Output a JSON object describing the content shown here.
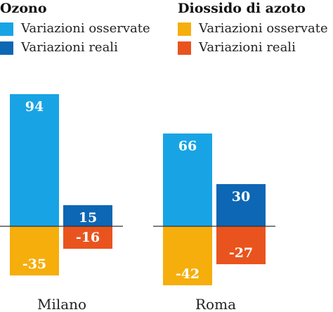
{
  "legend": {
    "groups": [
      {
        "title": "Ozono",
        "items": [
          {
            "label": "Variazioni osservate",
            "color": "#18a4e4"
          },
          {
            "label": "Variazioni reali",
            "color": "#0d67b4"
          }
        ]
      },
      {
        "title": "Diossido di azoto",
        "items": [
          {
            "label": "Variazioni osservate",
            "color": "#f5ae0c"
          },
          {
            "label": "Variazioni reali",
            "color": "#e9541e"
          }
        ]
      }
    ]
  },
  "chart_data": {
    "type": "bar",
    "categories": [
      "Milano",
      "Roma"
    ],
    "series": [
      {
        "group": "Ozono",
        "name": "Variazioni osservate",
        "values": [
          94,
          66
        ],
        "color": "#18a4e4",
        "labels": [
          "94",
          "66"
        ]
      },
      {
        "group": "Ozono",
        "name": "Variazioni reali",
        "values": [
          15,
          30
        ],
        "color": "#0d67b4",
        "labels": [
          "15",
          "30"
        ]
      },
      {
        "group": "Diossido di azoto",
        "name": "Variazioni osservate",
        "values": [
          -35,
          -42
        ],
        "color": "#f5ae0c",
        "labels": [
          "-35",
          "-42"
        ]
      },
      {
        "group": "Diossido di azoto",
        "name": "Variazioni reali",
        "values": [
          -16,
          -27
        ],
        "color": "#e9541e",
        "labels": [
          "-16",
          "-27"
        ]
      }
    ],
    "ylim": [
      -42,
      94
    ],
    "grid": false,
    "legend_position": "top"
  }
}
